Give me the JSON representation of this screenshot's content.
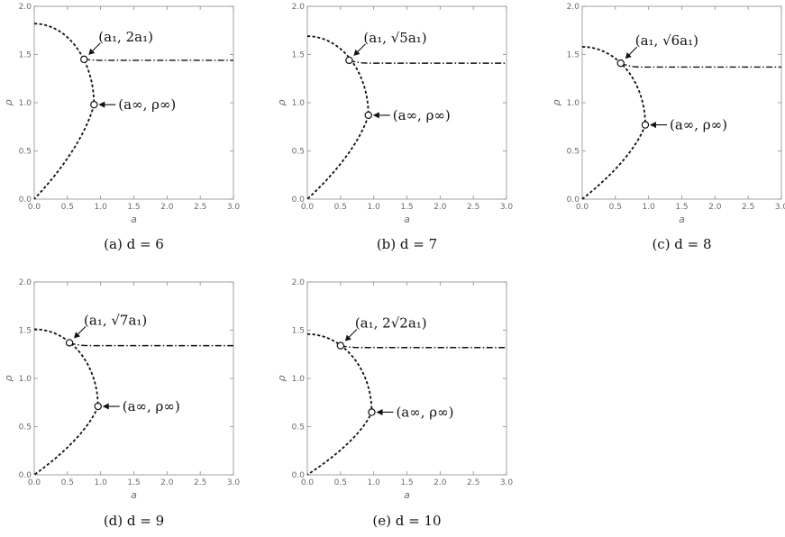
{
  "chart_data": [
    {
      "type": "line",
      "caption": "(a) d = 6",
      "xlabel": "a",
      "ylabel": "ρ",
      "xlim": [
        0,
        3
      ],
      "ylim": [
        0,
        2
      ],
      "xticks": [
        "0.0",
        "0.5",
        "1.0",
        "1.5",
        "2.0",
        "2.5",
        "3.0"
      ],
      "yticks": [
        "0.0",
        "0.5",
        "1.0",
        "1.5",
        "2.0"
      ],
      "rho_axis_intercept": 1.82,
      "a_inf": 0.9,
      "rho_inf": 0.98,
      "a1": 0.75,
      "rho1": 1.45,
      "plateau": 1.44,
      "point1_label": "(a₁, 2a₁)",
      "point2_label": "(a∞, ρ∞)"
    },
    {
      "type": "line",
      "caption": "(b) d = 7",
      "xlabel": "a",
      "ylabel": "ρ",
      "xlim": [
        0,
        3
      ],
      "ylim": [
        0,
        2
      ],
      "xticks": [
        "0.0",
        "0.5",
        "1.0",
        "1.5",
        "2.0",
        "2.5",
        "3.0"
      ],
      "yticks": [
        "0.0",
        "0.5",
        "1.0",
        "1.5",
        "2.0"
      ],
      "rho_axis_intercept": 1.69,
      "a_inf": 0.92,
      "rho_inf": 0.87,
      "a1": 0.63,
      "rho1": 1.44,
      "plateau": 1.41,
      "point1_label": "(a₁, √5a₁)",
      "point2_label": "(a∞, ρ∞)"
    },
    {
      "type": "line",
      "caption": "(c) d = 8",
      "xlabel": "a",
      "ylabel": "ρ",
      "xlim": [
        0,
        3
      ],
      "ylim": [
        0,
        2
      ],
      "xticks": [
        "0.0",
        "0.5",
        "1.0",
        "1.5",
        "2.0",
        "2.5",
        "3.0"
      ],
      "yticks": [
        "0.0",
        "0.5",
        "1.0",
        "1.5",
        "2.0"
      ],
      "rho_axis_intercept": 1.58,
      "a_inf": 0.95,
      "rho_inf": 0.77,
      "a1": 0.58,
      "rho1": 1.41,
      "plateau": 1.37,
      "point1_label": "(a₁, √6a₁)",
      "point2_label": "(a∞, ρ∞)"
    },
    {
      "type": "line",
      "caption": "(d) d = 9",
      "xlabel": "a",
      "ylabel": "ρ",
      "xlim": [
        0,
        3
      ],
      "ylim": [
        0,
        2
      ],
      "xticks": [
        "0.0",
        "0.5",
        "1.0",
        "1.5",
        "2.0",
        "2.5",
        "3.0"
      ],
      "yticks": [
        "0.0",
        "0.5",
        "1.0",
        "1.5",
        "2.0"
      ],
      "rho_axis_intercept": 1.51,
      "a_inf": 0.96,
      "rho_inf": 0.71,
      "a1": 0.53,
      "rho1": 1.37,
      "plateau": 1.34,
      "point1_label": "(a₁, √7a₁)",
      "point2_label": "(a∞, ρ∞)"
    },
    {
      "type": "line",
      "caption": "(e) d = 10",
      "xlabel": "a",
      "ylabel": "ρ",
      "xlim": [
        0,
        3
      ],
      "ylim": [
        0,
        2
      ],
      "xticks": [
        "0.0",
        "0.5",
        "1.0",
        "1.5",
        "2.0",
        "2.5",
        "3.0"
      ],
      "yticks": [
        "0.0",
        "0.5",
        "1.0",
        "1.5",
        "2.0"
      ],
      "rho_axis_intercept": 1.46,
      "a_inf": 0.97,
      "rho_inf": 0.65,
      "a1": 0.5,
      "rho1": 1.34,
      "plateau": 1.32,
      "point1_label": "(a₁, 2√2a₁)",
      "point2_label": "(a∞, ρ∞)"
    }
  ]
}
